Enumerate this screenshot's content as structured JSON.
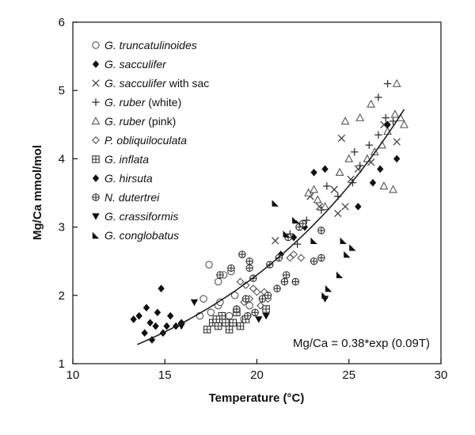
{
  "chart_data": {
    "type": "scatter",
    "xlabel": "Temperature (°C)",
    "ylabel": "Mg/Ca mmol/mol",
    "xlim": [
      10,
      30
    ],
    "ylim": [
      1,
      6
    ],
    "xticks": [
      10,
      15,
      20,
      25,
      30
    ],
    "yticks": [
      1,
      2,
      3,
      4,
      5,
      6
    ],
    "grid": false,
    "legend_position": "top-left",
    "annotation": "Mg/Ca = 0.38*exp (0.09T)",
    "fit": {
      "a": 0.38,
      "b": 0.09,
      "x_range": [
        13.5,
        28
      ]
    },
    "series": [
      {
        "name": "G. truncatulinoides",
        "marker": "circle-open",
        "points": [
          [
            17.4,
            2.45
          ],
          [
            17.9,
            2.2
          ],
          [
            18.2,
            2.3
          ],
          [
            18.6,
            2.35
          ],
          [
            17.1,
            1.95
          ],
          [
            17.5,
            1.75
          ],
          [
            17.9,
            1.85
          ],
          [
            18.3,
            1.6
          ],
          [
            18.8,
            2.0
          ],
          [
            19.3,
            1.65
          ],
          [
            16.9,
            1.7
          ],
          [
            18.0,
            1.9
          ],
          [
            19.6,
            1.85
          ],
          [
            18.5,
            1.7
          ]
        ]
      },
      {
        "name": "G. sacculifer",
        "marker": "diamond-filled",
        "points": [
          [
            13.3,
            1.65
          ],
          [
            13.9,
            1.45
          ],
          [
            14.2,
            1.6
          ],
          [
            14.5,
            1.55
          ],
          [
            14.8,
            2.1
          ],
          [
            14.0,
            1.82
          ],
          [
            14.6,
            1.75
          ],
          [
            15.1,
            1.55
          ],
          [
            15.3,
            1.7
          ],
          [
            15.6,
            1.55
          ],
          [
            14.3,
            1.35
          ],
          [
            14.9,
            1.45
          ],
          [
            15.9,
            1.6
          ],
          [
            13.6,
            1.7
          ]
        ]
      },
      {
        "name": "G. sacculifer with sac",
        "marker": "x",
        "points": [
          [
            21.0,
            2.8
          ],
          [
            22.3,
            3.05
          ],
          [
            23.4,
            3.3
          ],
          [
            24.2,
            3.55
          ],
          [
            24.8,
            3.3
          ],
          [
            25.1,
            3.7
          ],
          [
            25.5,
            3.85
          ],
          [
            24.6,
            4.3
          ],
          [
            26.2,
            3.95
          ],
          [
            26.9,
            4.5
          ],
          [
            27.6,
            4.25
          ],
          [
            22.9,
            3.45
          ],
          [
            24.4,
            3.2
          ]
        ]
      },
      {
        "name": "G. ruber (white)",
        "marker": "plus",
        "points": [
          [
            21.8,
            2.9
          ],
          [
            22.7,
            3.1
          ],
          [
            23.5,
            3.25
          ],
          [
            24.4,
            3.45
          ],
          [
            25.2,
            3.65
          ],
          [
            25.6,
            3.9
          ],
          [
            25.3,
            4.1
          ],
          [
            26.1,
            4.2
          ],
          [
            26.6,
            4.35
          ],
          [
            27.0,
            4.6
          ],
          [
            27.1,
            5.1
          ],
          [
            26.6,
            4.9
          ],
          [
            22.2,
            2.75
          ],
          [
            23.8,
            3.6
          ],
          [
            27.4,
            4.55
          ]
        ]
      },
      {
        "name": "G. ruber (pink)",
        "marker": "triangle-open",
        "points": [
          [
            22.8,
            3.5
          ],
          [
            23.3,
            3.4
          ],
          [
            23.7,
            3.3
          ],
          [
            24.5,
            3.8
          ],
          [
            24.8,
            4.55
          ],
          [
            25.6,
            4.6
          ],
          [
            25.0,
            4.0
          ],
          [
            26.0,
            4.0
          ],
          [
            26.4,
            4.1
          ],
          [
            26.8,
            4.2
          ],
          [
            27.1,
            4.4
          ],
          [
            27.5,
            4.65
          ],
          [
            27.8,
            4.6
          ],
          [
            28.0,
            4.5
          ],
          [
            27.4,
            3.55
          ],
          [
            27.6,
            5.1
          ],
          [
            26.2,
            4.8
          ],
          [
            26.9,
            3.6
          ],
          [
            23.1,
            3.55
          ]
        ]
      },
      {
        "name": "P. obliquiloculata",
        "marker": "diamond-open",
        "points": [
          [
            19.1,
            2.2
          ],
          [
            19.4,
            2.15
          ],
          [
            19.6,
            1.95
          ],
          [
            20.0,
            2.05
          ],
          [
            20.4,
            2.05
          ],
          [
            19.3,
            1.9
          ],
          [
            20.2,
            1.85
          ],
          [
            21.8,
            2.55
          ],
          [
            22.0,
            2.6
          ],
          [
            22.4,
            2.55
          ],
          [
            19.8,
            2.1
          ],
          [
            20.6,
            1.95
          ]
        ]
      },
      {
        "name": "G. inflata",
        "marker": "square-grid",
        "points": [
          [
            17.6,
            1.6
          ],
          [
            17.9,
            1.55
          ],
          [
            18.1,
            1.7
          ],
          [
            18.3,
            1.6
          ],
          [
            18.5,
            1.5
          ],
          [
            18.9,
            1.75
          ],
          [
            19.1,
            1.55
          ],
          [
            17.3,
            1.5
          ],
          [
            17.8,
            1.65
          ],
          [
            20.5,
            1.8
          ],
          [
            19.4,
            1.65
          ],
          [
            18.7,
            1.6
          ]
        ]
      },
      {
        "name": "G. hirsuta",
        "marker": "diamond-filled",
        "points": [
          [
            21.3,
            2.6
          ],
          [
            22.0,
            2.85
          ],
          [
            23.1,
            3.8
          ],
          [
            23.7,
            3.85
          ],
          [
            25.5,
            3.3
          ],
          [
            26.3,
            3.65
          ],
          [
            27.1,
            4.5
          ],
          [
            27.6,
            4.0
          ],
          [
            26.7,
            3.85
          ],
          [
            22.6,
            3.0
          ]
        ]
      },
      {
        "name": "N. dutertrei",
        "marker": "plus-circle",
        "points": [
          [
            18.0,
            2.3
          ],
          [
            18.6,
            2.4
          ],
          [
            19.2,
            2.6
          ],
          [
            19.6,
            2.4
          ],
          [
            19.6,
            2.5
          ],
          [
            19.8,
            2.25
          ],
          [
            20.7,
            2.45
          ],
          [
            21.2,
            2.55
          ],
          [
            21.6,
            2.3
          ],
          [
            22.1,
            2.2
          ],
          [
            21.7,
            2.85
          ],
          [
            22.3,
            3.0
          ],
          [
            22.5,
            3.05
          ],
          [
            23.5,
            2.95
          ],
          [
            23.1,
            2.5
          ],
          [
            23.5,
            2.55
          ],
          [
            19.5,
            1.7
          ],
          [
            18.9,
            1.8
          ],
          [
            19.4,
            1.95
          ],
          [
            19.9,
            1.75
          ],
          [
            20.3,
            1.95
          ],
          [
            20.6,
            2.0
          ],
          [
            21.1,
            2.1
          ],
          [
            21.5,
            2.2
          ]
        ]
      },
      {
        "name": "G. crassiformis",
        "marker": "triangle-down-filled",
        "points": [
          [
            15.9,
            1.55
          ],
          [
            16.6,
            1.9
          ],
          [
            20.1,
            1.65
          ],
          [
            20.5,
            1.7
          ],
          [
            23.7,
            1.95
          ]
        ]
      },
      {
        "name": "G. conglobatus",
        "marker": "half-triangle",
        "points": [
          [
            21.0,
            3.35
          ],
          [
            21.6,
            2.9
          ],
          [
            22.1,
            3.1
          ],
          [
            23.1,
            2.8
          ],
          [
            23.7,
            2.0
          ],
          [
            23.9,
            2.1
          ],
          [
            24.5,
            2.3
          ],
          [
            24.7,
            2.8
          ],
          [
            24.9,
            2.6
          ],
          [
            25.2,
            2.7
          ]
        ]
      }
    ]
  }
}
